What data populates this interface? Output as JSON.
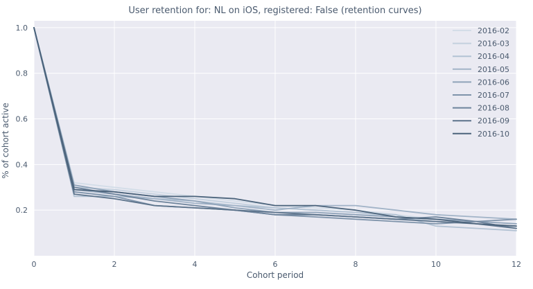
{
  "chart_data": {
    "type": "line",
    "title": "User retention for: NL on iOS, registered: False (retention curves)",
    "xlabel": "Cohort period",
    "ylabel": "% of cohort active",
    "xlim": [
      0,
      12
    ],
    "ylim": [
      0.0,
      1.03
    ],
    "x_ticks": [
      0,
      2,
      4,
      6,
      8,
      10,
      12
    ],
    "y_ticks": [
      0.2,
      0.4,
      0.6,
      0.8,
      1.0
    ],
    "x_tick_labels": [
      "0",
      "2",
      "4",
      "6",
      "8",
      "10",
      "12"
    ],
    "y_tick_labels": [
      "0.2",
      "0.4",
      "0.6",
      "0.8",
      "1.0"
    ],
    "grid": true,
    "background": "#eaeaf2",
    "legend_position": "top-right",
    "x": [
      0,
      1,
      2,
      3,
      4,
      5,
      6,
      7,
      8,
      9,
      10,
      11,
      12
    ],
    "series": [
      {
        "name": "2016-02",
        "color": "#d3dde8",
        "values": [
          1.0,
          0.32,
          0.3,
          0.28,
          0.26,
          0.24,
          0.22,
          0.21,
          0.2,
          0.18,
          0.16,
          0.14,
          0.12
        ]
      },
      {
        "name": "2016-03",
        "color": "#c3d0de",
        "values": [
          1.0,
          0.3,
          0.29,
          0.27,
          0.25,
          0.23,
          0.21,
          0.2,
          0.19,
          0.17,
          0.15,
          0.14,
          0.13
        ]
      },
      {
        "name": "2016-04",
        "color": "#b2c2d3",
        "values": [
          1.0,
          0.26,
          0.26,
          0.25,
          0.24,
          0.22,
          0.21,
          0.2,
          0.19,
          0.18,
          0.13,
          0.12,
          0.11
        ]
      },
      {
        "name": "2016-05",
        "color": "#a1b3c7",
        "values": [
          1.0,
          0.29,
          0.27,
          0.25,
          0.23,
          0.22,
          0.2,
          0.22,
          0.22,
          0.2,
          0.18,
          0.17,
          0.16
        ]
      },
      {
        "name": "2016-06",
        "color": "#8fa3b9",
        "values": [
          1.0,
          0.31,
          0.28,
          0.26,
          0.24,
          0.21,
          0.19,
          0.19,
          0.18,
          0.17,
          0.16,
          0.15,
          0.14
        ]
      },
      {
        "name": "2016-07",
        "color": "#7e93aa",
        "values": [
          1.0,
          0.28,
          0.26,
          0.22,
          0.21,
          0.2,
          0.18,
          0.17,
          0.16,
          0.15,
          0.14,
          0.15,
          0.16
        ]
      },
      {
        "name": "2016-08",
        "color": "#6d839b",
        "values": [
          1.0,
          0.3,
          0.27,
          0.24,
          0.22,
          0.2,
          0.18,
          0.18,
          0.17,
          0.16,
          0.17,
          0.15,
          0.12
        ]
      },
      {
        "name": "2016-09",
        "color": "#5c738b",
        "values": [
          1.0,
          0.27,
          0.25,
          0.22,
          0.21,
          0.2,
          0.19,
          0.18,
          0.17,
          0.16,
          0.15,
          0.14,
          0.12
        ]
      },
      {
        "name": "2016-10",
        "color": "#4b637b",
        "values": [
          1.0,
          0.29,
          0.28,
          0.26,
          0.26,
          0.25,
          0.22,
          0.22,
          0.2,
          0.17,
          0.16,
          0.14,
          0.13
        ]
      }
    ]
  }
}
